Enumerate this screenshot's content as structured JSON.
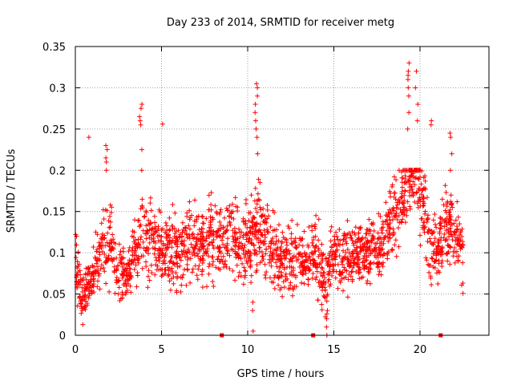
{
  "chart_data": {
    "type": "scatter",
    "title": "Day 233 of 2014, SRMTID for receiver metg",
    "xlabel": "GPS time / hours",
    "ylabel": "SRMTID / TECUs",
    "xlim": [
      0,
      24
    ],
    "ylim": [
      0,
      0.35
    ],
    "xticks": [
      0,
      5,
      10,
      15,
      20
    ],
    "xtick_labels": [
      "0",
      "5",
      "10",
      "15",
      "20"
    ],
    "yticks": [
      0,
      0.05,
      0.1,
      0.15,
      0.2,
      0.25,
      0.3,
      0.35
    ],
    "ytick_labels": [
      "0",
      "0.05",
      "0.1",
      "0.15",
      "0.2",
      "0.25",
      "0.3",
      "0.35"
    ],
    "grid": true,
    "marker": "plus",
    "color": "#ff0000",
    "gap_markers_x": [
      8.5,
      13.8,
      21.2
    ],
    "series": [
      {
        "name": "SRMTID",
        "profile": [
          {
            "x": 0.0,
            "base": 0.09,
            "spread": 0.05
          },
          {
            "x": 0.4,
            "base": 0.04,
            "spread": 0.03
          },
          {
            "x": 1.0,
            "base": 0.07,
            "spread": 0.04
          },
          {
            "x": 1.5,
            "base": 0.1,
            "spread": 0.06
          },
          {
            "x": 2.0,
            "base": 0.12,
            "spread": 0.07
          },
          {
            "x": 2.5,
            "base": 0.08,
            "spread": 0.05
          },
          {
            "x": 3.0,
            "base": 0.07,
            "spread": 0.04
          },
          {
            "x": 3.5,
            "base": 0.1,
            "spread": 0.05
          },
          {
            "x": 4.0,
            "base": 0.12,
            "spread": 0.06
          },
          {
            "x": 5.0,
            "base": 0.11,
            "spread": 0.06
          },
          {
            "x": 6.0,
            "base": 0.1,
            "spread": 0.06
          },
          {
            "x": 7.0,
            "base": 0.11,
            "spread": 0.06
          },
          {
            "x": 8.0,
            "base": 0.12,
            "spread": 0.06
          },
          {
            "x": 9.0,
            "base": 0.12,
            "spread": 0.06
          },
          {
            "x": 10.0,
            "base": 0.11,
            "spread": 0.06
          },
          {
            "x": 10.5,
            "base": 0.13,
            "spread": 0.07
          },
          {
            "x": 11.0,
            "base": 0.12,
            "spread": 0.06
          },
          {
            "x": 12.0,
            "base": 0.09,
            "spread": 0.05
          },
          {
            "x": 13.0,
            "base": 0.09,
            "spread": 0.05
          },
          {
            "x": 14.0,
            "base": 0.1,
            "spread": 0.06
          },
          {
            "x": 14.5,
            "base": 0.06,
            "spread": 0.05
          },
          {
            "x": 15.0,
            "base": 0.1,
            "spread": 0.05
          },
          {
            "x": 16.0,
            "base": 0.09,
            "spread": 0.05
          },
          {
            "x": 17.0,
            "base": 0.1,
            "spread": 0.05
          },
          {
            "x": 18.0,
            "base": 0.12,
            "spread": 0.06
          },
          {
            "x": 19.0,
            "base": 0.17,
            "spread": 0.07
          },
          {
            "x": 19.7,
            "base": 0.21,
            "spread": 0.08
          },
          {
            "x": 20.5,
            "base": 0.12,
            "spread": 0.06
          },
          {
            "x": 21.0,
            "base": 0.1,
            "spread": 0.05
          },
          {
            "x": 21.5,
            "base": 0.13,
            "spread": 0.06
          },
          {
            "x": 22.0,
            "base": 0.13,
            "spread": 0.05
          },
          {
            "x": 22.5,
            "base": 0.09,
            "spread": 0.05
          }
        ],
        "points_per_hour": 95,
        "seed": 233,
        "spikes": [
          {
            "x": 0.8,
            "values": [
              0.24
            ]
          },
          {
            "x": 1.8,
            "values": [
              0.2,
              0.21,
              0.215,
              0.225,
              0.23
            ]
          },
          {
            "x": 3.8,
            "values": [
              0.2,
              0.225,
              0.255,
              0.26,
              0.265,
              0.275,
              0.28
            ]
          },
          {
            "x": 5.1,
            "values": [
              0.256
            ]
          },
          {
            "x": 10.5,
            "values": [
              0.22,
              0.24,
              0.25,
              0.26,
              0.27,
              0.28,
              0.29,
              0.3,
              0.305
            ]
          },
          {
            "x": 10.3,
            "values": [
              0.005,
              0.03,
              0.04
            ]
          },
          {
            "x": 14.6,
            "values": [
              0.0,
              0.01,
              0.02,
              0.03
            ]
          },
          {
            "x": 19.3,
            "values": [
              0.25,
              0.27,
              0.29,
              0.3,
              0.31,
              0.315,
              0.32,
              0.33
            ]
          },
          {
            "x": 19.8,
            "values": [
              0.26,
              0.28,
              0.3,
              0.32
            ]
          },
          {
            "x": 20.7,
            "values": [
              0.255,
              0.26
            ]
          },
          {
            "x": 21.8,
            "values": [
              0.2,
              0.22,
              0.24,
              0.245
            ]
          }
        ]
      }
    ]
  }
}
